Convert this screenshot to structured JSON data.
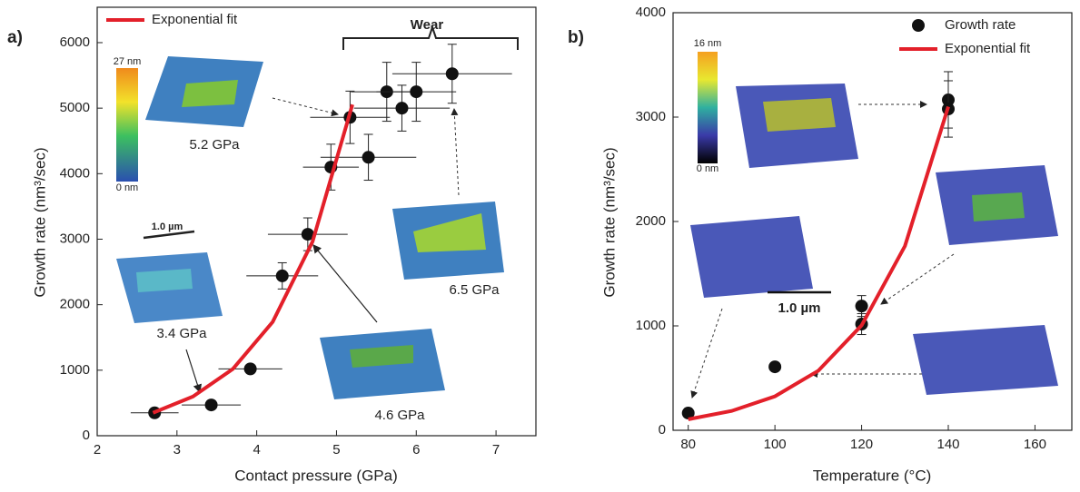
{
  "chart_data": [
    {
      "type": "scatter",
      "panel_label": "a)",
      "x_label": "Contact pressure (GPa)",
      "y_label": "Growth rate (nm³/sec)",
      "xlim": [
        2,
        7.5
      ],
      "ylim": [
        0,
        6540
      ],
      "xticks": [
        2,
        3,
        4,
        5,
        6,
        7
      ],
      "yticks": [
        0,
        1000,
        2000,
        3000,
        4000,
        5000,
        6000
      ],
      "legend": "upper left",
      "series": [
        {
          "color": "#111111",
          "style": "marker",
          "x": [
            2.72,
            3.43,
            3.92,
            4.32,
            4.64,
            4.93,
            5.4,
            5.17,
            5.63,
            5.82,
            6.0,
            6.45
          ],
          "values": [
            350,
            470,
            1020,
            2440,
            3075,
            4100,
            4250,
            4860,
            5250,
            5000,
            5250,
            5525
          ],
          "x_errors": [
            0.3,
            0.37,
            0.4,
            0.45,
            0.5,
            0.35,
            0.6,
            0.5,
            0.45,
            0.6,
            0.5,
            0.75
          ],
          "errors": [
            null,
            null,
            null,
            200,
            250,
            350,
            350,
            400,
            450,
            350,
            450,
            450
          ]
        },
        {
          "name": "Exponential fit",
          "color": "#e3202a",
          "style": "line",
          "x": [
            2.7,
            3.2,
            3.7,
            4.2,
            4.7,
            5.2
          ],
          "values": [
            350,
            597,
            1018,
            1737,
            2963,
            5055
          ]
        }
      ],
      "annotations": [
        "Wear",
        "5.2 GPa",
        "3.4 GPa",
        "4.6 GPa",
        "6.5 GPa",
        "1.0 µm",
        "27 nm",
        "0 nm"
      ]
    },
    {
      "type": "scatter",
      "panel_label": "b)",
      "x_label": "Temperature (°C)",
      "y_label": "Growth rate (nm³/sec)",
      "xlim": [
        76.5,
        168.5
      ],
      "ylim": [
        0,
        4000
      ],
      "xticks": [
        80,
        100,
        120,
        140,
        160
      ],
      "yticks": [
        0,
        1000,
        2000,
        3000,
        4000
      ],
      "legend": "upper right",
      "series": [
        {
          "name": "Growth rate",
          "color": "#111111",
          "style": "marker",
          "x": [
            80,
            100,
            120,
            120,
            140,
            140
          ],
          "values": [
            165,
            608,
            1190,
            1017,
            3165,
            3078
          ],
          "errors": [
            null,
            null,
            100,
            100,
            270,
            270
          ]
        },
        {
          "name": "Exponential fit",
          "color": "#e3202a",
          "style": "line",
          "x": [
            80,
            90,
            100,
            110,
            120,
            130,
            140
          ],
          "values": [
            105,
            185,
            325,
            570,
            1005,
            1765,
            3100
          ]
        }
      ],
      "annotations": [
        "16 nm",
        "0 nm",
        "1.0 µm"
      ]
    }
  ]
}
